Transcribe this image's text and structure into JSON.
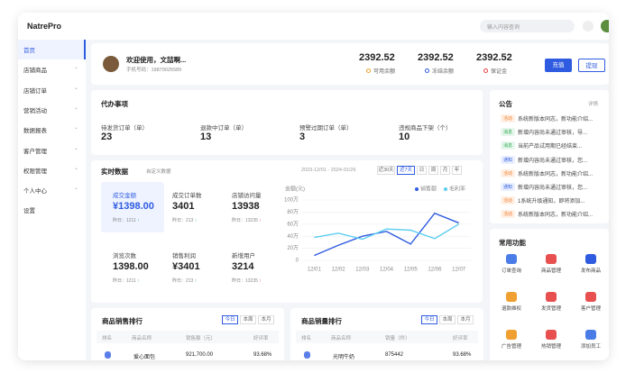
{
  "header": {
    "brand": "NatrePro",
    "search_placeholder": "输入内容查询"
  },
  "sidebar": {
    "items": [
      "首页",
      "店铺商品",
      "店铺订单",
      "营销活动",
      "数据报表",
      "客户管理",
      "权限管理",
      "个人中心",
      "设置"
    ]
  },
  "welcome": {
    "greeting": "欢迎使用，文喆啊...",
    "phone": "手机号码：19879025589"
  },
  "balances": [
    {
      "amount": "2392.52",
      "label": "可用余额"
    },
    {
      "amount": "2392.52",
      "label": "冻结余额"
    },
    {
      "amount": "2392.52",
      "label": "保证金"
    }
  ],
  "buttons": [
    "充值",
    "提现"
  ],
  "todo": {
    "title": "代办事项",
    "items": [
      {
        "label": "待发货订单（单）",
        "value": "23"
      },
      {
        "label": "退款中订单（单）",
        "value": "13"
      },
      {
        "label": "预警过期订单（单）",
        "value": "3"
      },
      {
        "label": "违规商品下架（个）",
        "value": "10"
      }
    ]
  },
  "realtime": {
    "title": "实时数据",
    "custom": "自定义数据",
    "date_range": "2023-12/01 - 2024-01/26",
    "filters": [
      "近30天",
      "近7天",
      "日",
      "周",
      "月",
      "年"
    ],
    "metrics": [
      {
        "label": "成交金额",
        "value": "¥1398.00",
        "yesterday": "昨日：1211"
      },
      {
        "label": "成交订单数",
        "value": "3401",
        "yesterday": "昨日：213"
      },
      {
        "label": "店铺访问量",
        "value": "13938",
        "yesterday": "昨日：13235"
      },
      {
        "label": "浏览次数",
        "value": "1398.00",
        "yesterday": "昨日：1211"
      },
      {
        "label": "销售利润",
        "value": "¥3401",
        "yesterday": "昨日：213"
      },
      {
        "label": "新增用户",
        "value": "3214",
        "yesterday": "昨日：13235"
      }
    ]
  },
  "chart_data": {
    "type": "line",
    "y_label": "金额(元)",
    "categories": [
      "12/01",
      "12/02",
      "12/03",
      "12/04",
      "12/05",
      "12/06",
      "12/07"
    ],
    "series": [
      {
        "name": "销售额",
        "color": "#2f5be0",
        "values": [
          8,
          25,
          40,
          48,
          27,
          78,
          62
        ]
      },
      {
        "name": "毛利率",
        "color": "#5ccdf0",
        "values": [
          38,
          45,
          35,
          52,
          50,
          36,
          60
        ]
      }
    ],
    "ylim": [
      0,
      100
    ],
    "yticks": [
      0,
      {
        "value": 20,
        "label": "20万"
      },
      {
        "value": 40,
        "label": "40万"
      },
      {
        "value": 60,
        "label": "60万"
      },
      {
        "value": 80,
        "label": "80万"
      },
      {
        "value": 100,
        "label": "100万"
      }
    ],
    "grid": true,
    "legend": "top-right"
  },
  "notices": {
    "title": "公告",
    "more": "详情",
    "items": [
      {
        "tag": "活动",
        "text": "系统新版本同志，新功能介绍..."
      },
      {
        "tag": "消息",
        "text": "新增内容尚未通过审核，导..."
      },
      {
        "tag": "消息",
        "text": "当前产品试用期已经结束..."
      },
      {
        "tag": "通知",
        "text": "新增内容尚未通过审核，您..."
      },
      {
        "tag": "活动",
        "text": "系统新版本同志，新功能介绍..."
      },
      {
        "tag": "通知",
        "text": "新增内容尚未通过审核，您..."
      },
      {
        "tag": "活动",
        "text": "1系统升级通知，即将添加..."
      },
      {
        "tag": "活动",
        "text": "系统新版本同志，新功能介绍..."
      }
    ]
  },
  "functions": {
    "title": "常用功能",
    "items": [
      "订单查询",
      "商品管理",
      "发布商品",
      "退款维权",
      "发货管理",
      "客户管理",
      "广告管理",
      "热销管理",
      "添加员工"
    ]
  },
  "rankings": [
    {
      "title": "商品销售排行",
      "tabs": [
        "今日",
        "本周",
        "本月"
      ],
      "columns": [
        "排名",
        "商品名称",
        "销售额（元）",
        "好评率"
      ],
      "rows": [
        {
          "name": "爱心面包",
          "amount": "921,700.00",
          "rate": "93.68%"
        }
      ]
    },
    {
      "title": "商品销量排行",
      "tabs": [
        "今日",
        "本周",
        "本月"
      ],
      "columns": [
        "排名",
        "商品名称",
        "销量（件）",
        "好评率"
      ],
      "rows": [
        {
          "name": "光明牛奶",
          "amount": "875442",
          "rate": "93.68%"
        }
      ]
    }
  ]
}
